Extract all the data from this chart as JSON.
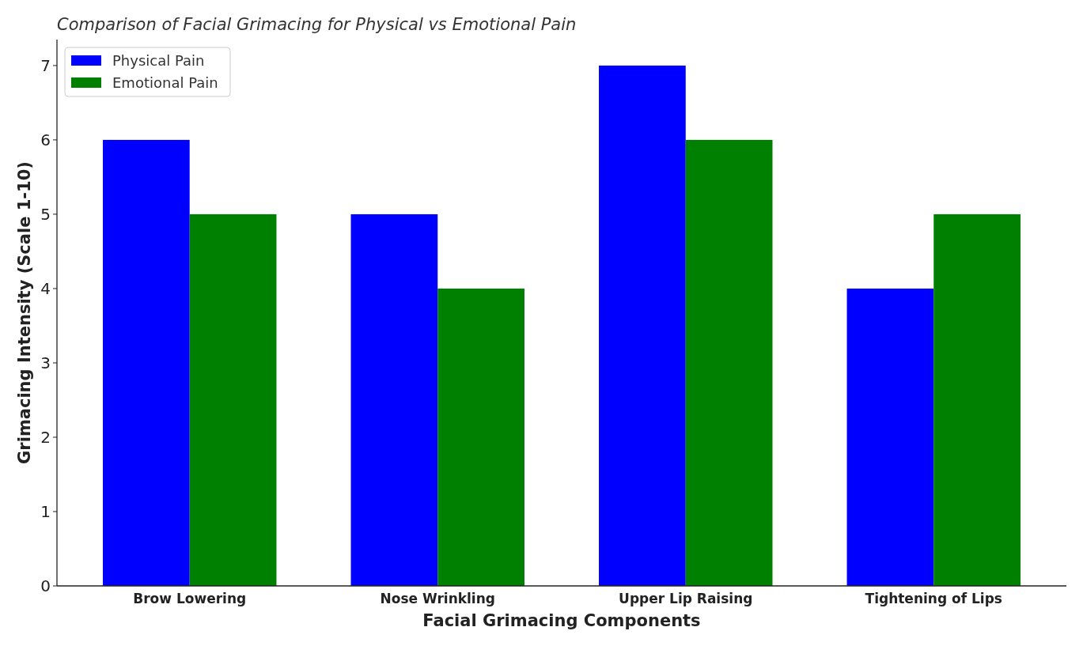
{
  "chart_data": {
    "type": "bar",
    "title": "Comparison of Facial Grimacing for Physical vs Emotional Pain",
    "xlabel": "Facial Grimacing Components",
    "ylabel": "Grimacing Intensity (Scale 1-10)",
    "categories": [
      "Brow Lowering",
      "Nose Wrinkling",
      "Upper Lip Raising",
      "Tightening of Lips"
    ],
    "series": [
      {
        "name": "Physical Pain",
        "color": "#0000ff",
        "values": [
          6,
          5,
          7,
          4
        ]
      },
      {
        "name": "Emotional Pain",
        "color": "#008000",
        "values": [
          5,
          4,
          6,
          5
        ]
      }
    ],
    "ylim": [
      0,
      7.35
    ],
    "yticks": [
      0,
      1,
      2,
      3,
      4,
      5,
      6,
      7
    ],
    "grid": false,
    "legend": "top left"
  }
}
